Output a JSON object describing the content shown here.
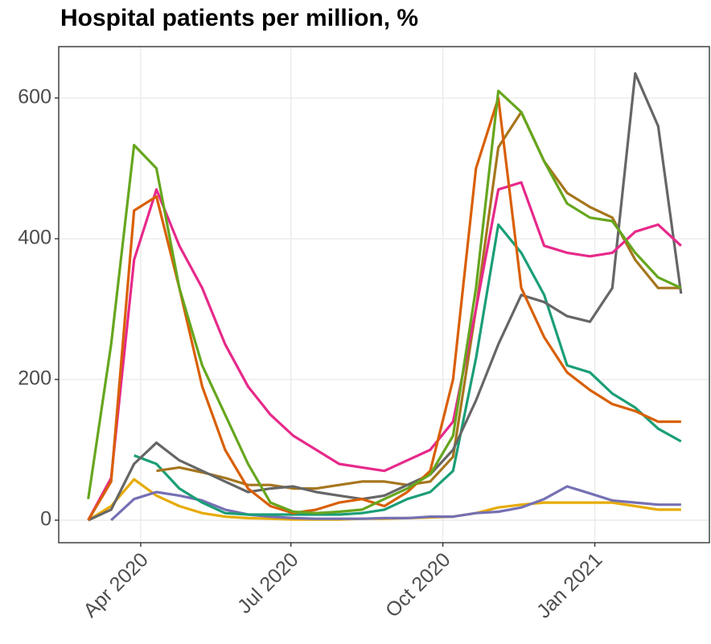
{
  "chart_data": {
    "type": "line",
    "title": "Hospital patients per million, %",
    "x": [
      2020.16,
      2020.198,
      2020.236,
      2020.273,
      2020.311,
      2020.349,
      2020.387,
      2020.425,
      2020.462,
      2020.5,
      2020.538,
      2020.576,
      2020.614,
      2020.651,
      2020.689,
      2020.727,
      2020.765,
      2020.803,
      2020.84,
      2020.878,
      2020.916,
      2020.954,
      2020.992,
      2021.029,
      2021.067,
      2021.105,
      2021.143
    ],
    "series": [
      {
        "color": "#e6ab02",
        "values": [
          0,
          20,
          58,
          35,
          20,
          10,
          5,
          3,
          2,
          1,
          1,
          1,
          2,
          2,
          3,
          4,
          5,
          10,
          18,
          22,
          25,
          25,
          25,
          25,
          20,
          15,
          15
        ]
      },
      {
        "color": "#7570b3",
        "values": [
          null,
          0,
          30,
          40,
          35,
          28,
          15,
          8,
          5,
          3,
          2,
          2,
          2,
          3,
          3,
          5,
          5,
          10,
          12,
          18,
          30,
          48,
          38,
          28,
          25,
          22,
          22
        ]
      },
      {
        "color": "#1b9e77",
        "values": [
          null,
          null,
          92,
          80,
          45,
          25,
          10,
          8,
          8,
          8,
          8,
          8,
          10,
          15,
          30,
          40,
          70,
          230,
          420,
          380,
          320,
          220,
          210,
          180,
          160,
          130,
          112
        ]
      },
      {
        "color": "#a6761d",
        "values": [
          null,
          null,
          null,
          70,
          75,
          68,
          60,
          50,
          50,
          45,
          45,
          50,
          55,
          55,
          50,
          55,
          90,
          300,
          530,
          580,
          510,
          465,
          445,
          430,
          370,
          330,
          330
        ]
      },
      {
        "color": "#666666",
        "values": [
          0,
          15,
          80,
          110,
          85,
          70,
          55,
          40,
          45,
          48,
          40,
          35,
          30,
          35,
          50,
          65,
          100,
          170,
          250,
          320,
          310,
          290,
          282,
          330,
          635,
          560,
          322
        ]
      },
      {
        "color": "#e7298a",
        "values": [
          0,
          60,
          370,
          470,
          390,
          330,
          250,
          190,
          150,
          120,
          100,
          80,
          75,
          70,
          85,
          100,
          140,
          300,
          470,
          480,
          390,
          380,
          375,
          380,
          410,
          420,
          390
        ]
      },
      {
        "color": "#d95f02",
        "values": [
          0,
          55,
          440,
          460,
          330,
          190,
          100,
          45,
          20,
          10,
          15,
          25,
          30,
          20,
          40,
          70,
          200,
          500,
          600,
          330,
          260,
          210,
          185,
          165,
          155,
          140,
          140
        ]
      },
      {
        "color": "#66a61e",
        "values": [
          30,
          250,
          533,
          500,
          330,
          220,
          150,
          80,
          25,
          12,
          10,
          12,
          15,
          30,
          45,
          65,
          120,
          330,
          610,
          580,
          510,
          450,
          430,
          425,
          380,
          345,
          330
        ]
      }
    ],
    "xlim": [
      2020.111,
      2021.19
    ],
    "ylim": [
      -32,
      673
    ],
    "xticks": [
      {
        "value": 2020.247,
        "label": "Apr 2020"
      },
      {
        "value": 2020.496,
        "label": "Jul 2020"
      },
      {
        "value": 2020.748,
        "label": "Oct 2020"
      },
      {
        "value": 2021.0,
        "label": "Jan 2021"
      }
    ],
    "yticks": [
      0,
      200,
      400,
      600
    ],
    "grid": true
  }
}
